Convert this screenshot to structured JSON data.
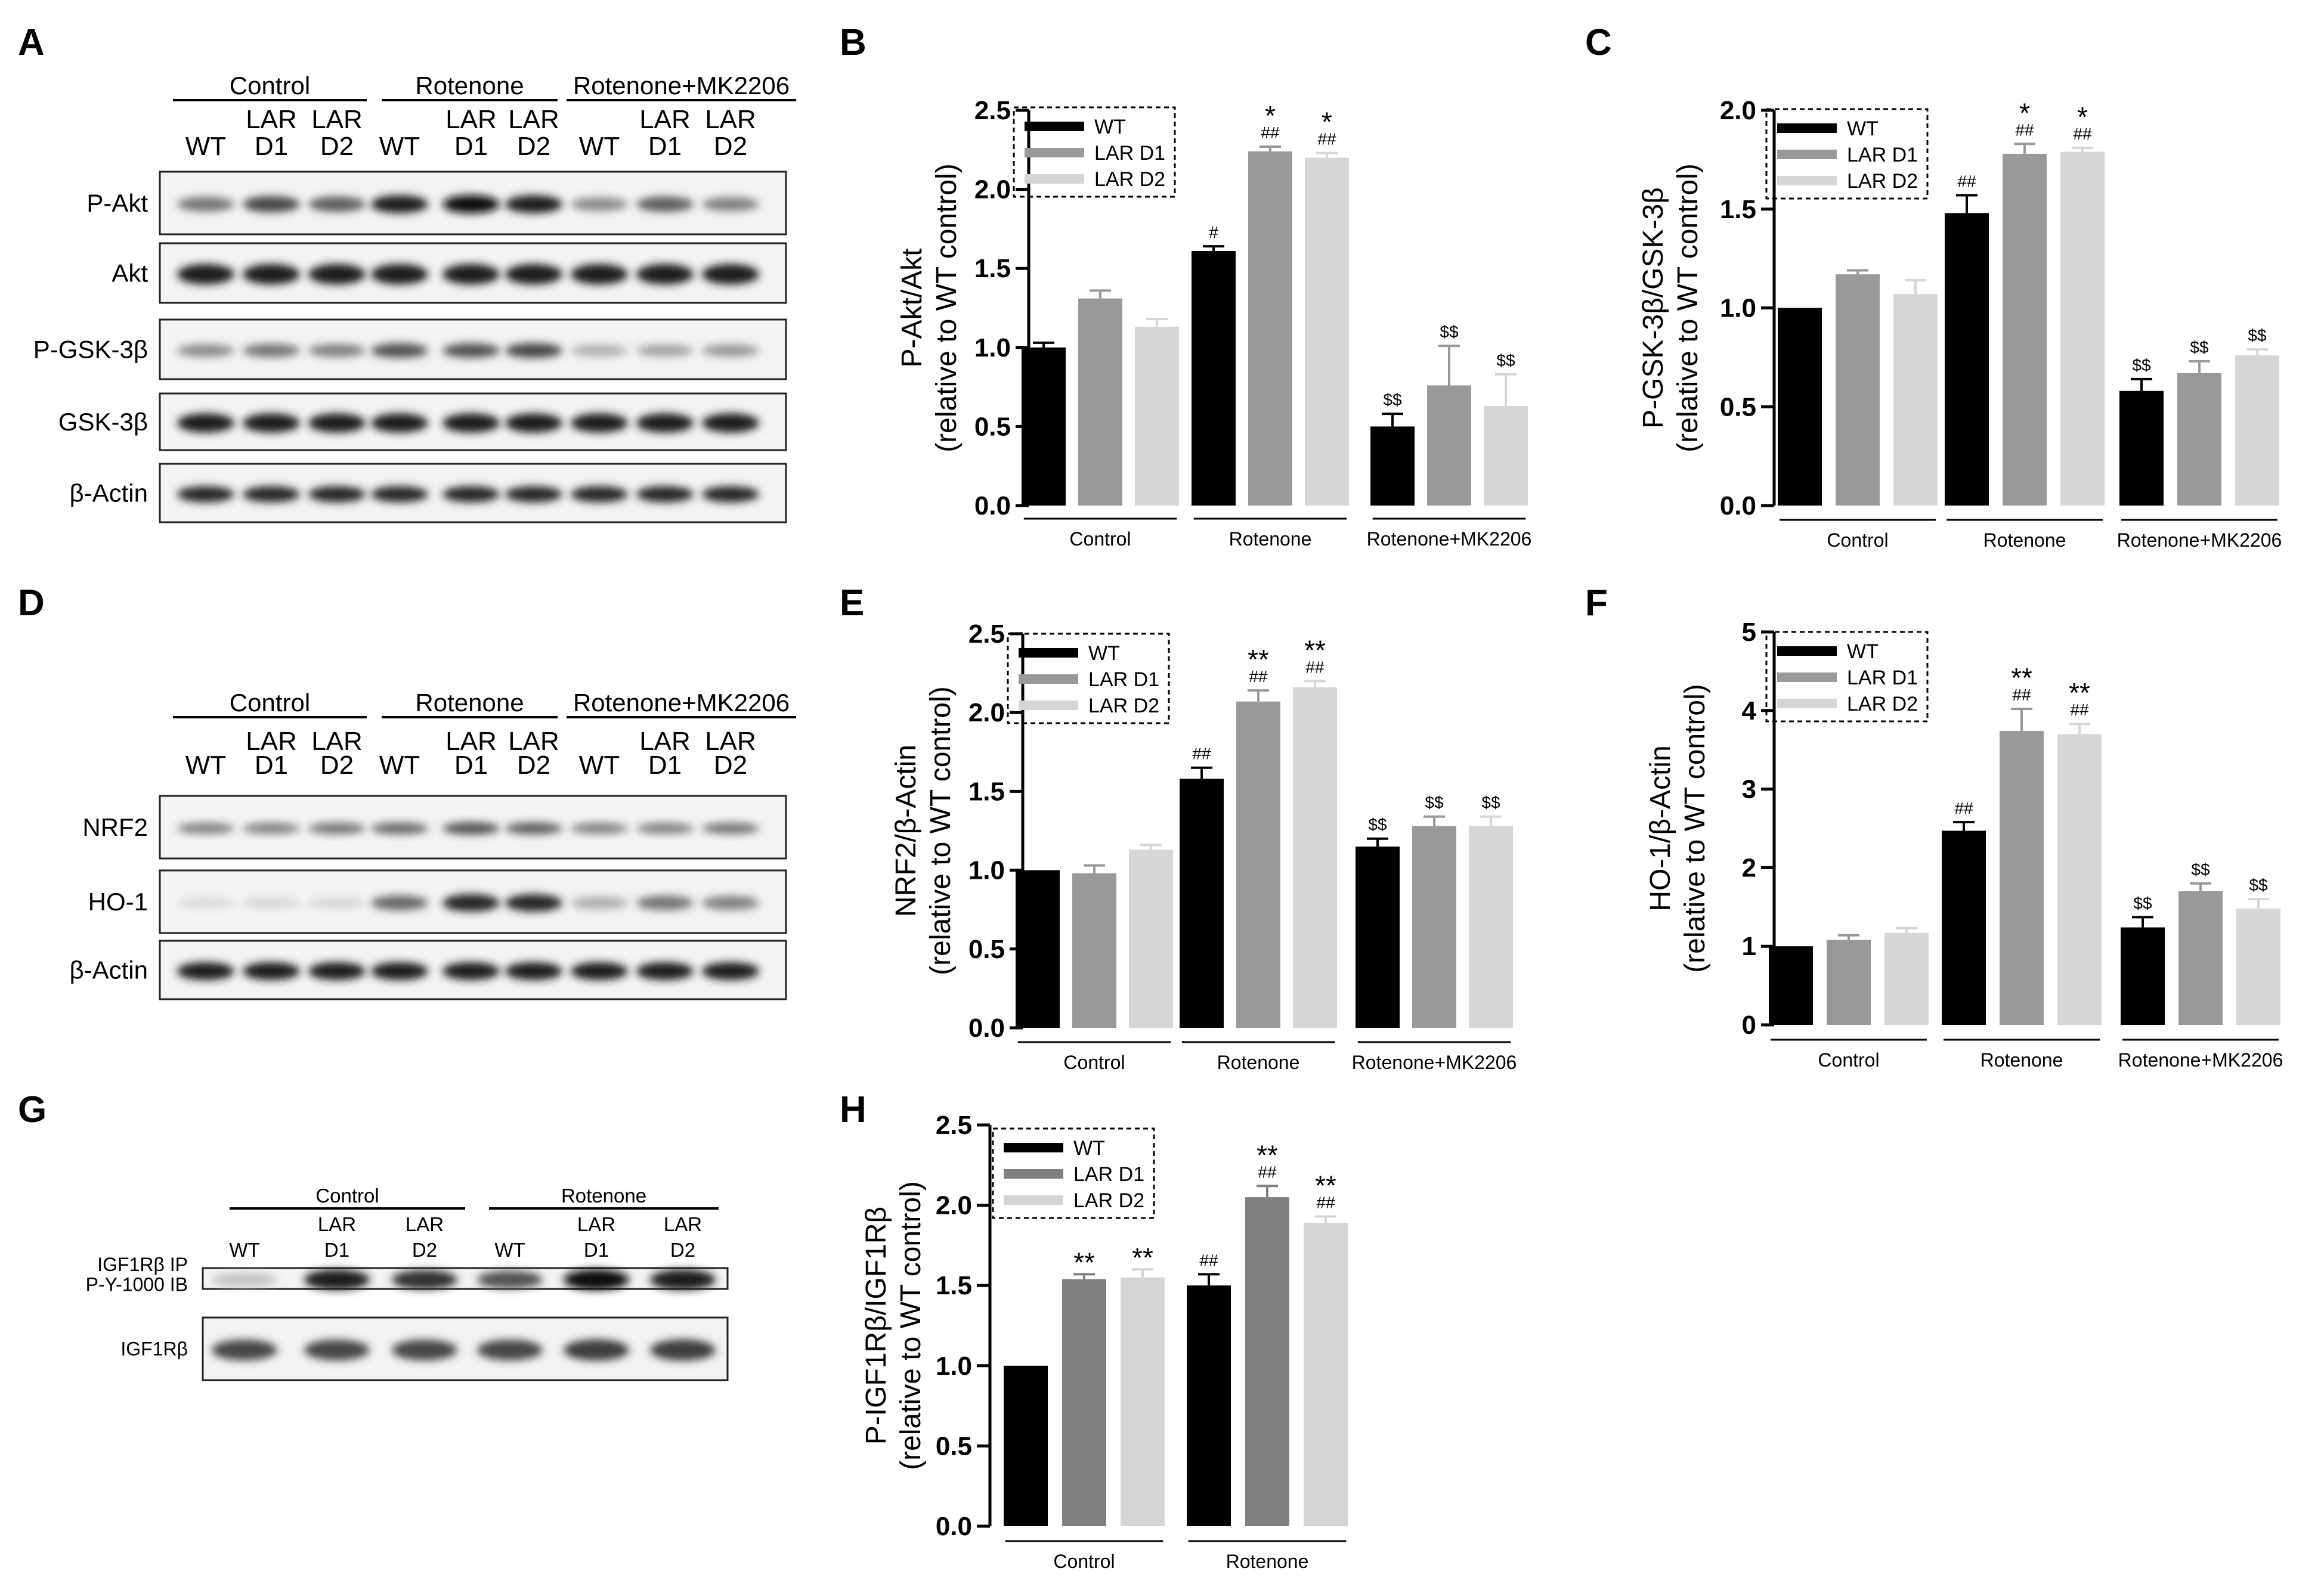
{
  "figure": {
    "panel_letters": [
      "A",
      "B",
      "C",
      "D",
      "E",
      "F",
      "G",
      "H"
    ]
  },
  "blots": {
    "A": {
      "groups": [
        "Control",
        "Rotenone",
        "Rotenone+MK2206"
      ],
      "lanes": [
        [
          "WT"
        ],
        [
          "LAR",
          "D1"
        ],
        [
          "LAR",
          "D2"
        ],
        [
          "WT"
        ],
        [
          "LAR",
          "D1"
        ],
        [
          "LAR",
          "D2"
        ],
        [
          "WT"
        ],
        [
          "LAR",
          "D1"
        ],
        [
          "LAR",
          "D2"
        ]
      ],
      "rows": [
        "P-Akt",
        "Akt",
        "P-GSK-3β",
        "GSK-3β",
        "β-Actin"
      ]
    },
    "D": {
      "groups": [
        "Control",
        "Rotenone",
        "Rotenone+MK2206"
      ],
      "lanes": [
        [
          "WT"
        ],
        [
          "LAR",
          "D1"
        ],
        [
          "LAR",
          "D2"
        ],
        [
          "WT"
        ],
        [
          "LAR",
          "D1"
        ],
        [
          "LAR",
          "D2"
        ],
        [
          "WT"
        ],
        [
          "LAR",
          "D1"
        ],
        [
          "LAR",
          "D2"
        ]
      ],
      "rows": [
        "NRF2",
        "HO-1",
        "β-Actin"
      ]
    },
    "G": {
      "groups": [
        "Control",
        "Rotenone"
      ],
      "lanes": [
        [
          "WT"
        ],
        [
          "LAR",
          "D1"
        ],
        [
          "LAR",
          "D2"
        ],
        [
          "WT"
        ],
        [
          "LAR",
          "D1"
        ],
        [
          "LAR",
          "D2"
        ]
      ],
      "rows": [
        [
          "IGF1Rβ IP",
          "P-Y-1000 IB"
        ],
        [
          "IGF1Rβ"
        ]
      ]
    }
  },
  "colors": {
    "WT": "#000000",
    "LAR D1": "#999999",
    "LAR D2": "#d6d6d6",
    "LAR D1 (H)": "#808080",
    "LAR D2 (H)": "#d4d4d4"
  },
  "chart_data": [
    {
      "panel": "B",
      "type": "bar",
      "ylabel": [
        "P-Akt/Akt",
        "(relative to WT control)"
      ],
      "ylim": [
        0,
        2.5
      ],
      "yticks": [
        "0.0",
        "0.5",
        "1.0",
        "1.5",
        "2.0",
        "2.5"
      ],
      "groups": [
        "Control",
        "Rotenone",
        "Rotenone+MK2206"
      ],
      "legend": [
        "WT",
        "LAR D1",
        "LAR D2"
      ],
      "series": [
        {
          "name": "WT",
          "values": [
            1.0,
            1.61,
            0.5
          ],
          "err": [
            0.03,
            0.03,
            0.08
          ],
          "marks": [
            [],
            [
              "#"
            ],
            [
              "$$"
            ]
          ]
        },
        {
          "name": "LAR D1",
          "values": [
            1.31,
            2.24,
            0.76
          ],
          "err": [
            0.05,
            0.03,
            0.25
          ],
          "marks": [
            [],
            [
              "##",
              "*"
            ],
            [
              "$$"
            ]
          ]
        },
        {
          "name": "LAR D2",
          "values": [
            1.13,
            2.2,
            0.63
          ],
          "err": [
            0.05,
            0.03,
            0.2
          ],
          "marks": [
            [],
            [
              "##",
              "*"
            ],
            [
              "$$"
            ]
          ]
        }
      ]
    },
    {
      "panel": "C",
      "type": "bar",
      "ylabel": [
        "P-GSK-3β/GSK-3β",
        "(relative to WT control)"
      ],
      "ylim": [
        0,
        2.0
      ],
      "yticks": [
        "0.0",
        "0.5",
        "1.0",
        "1.5",
        "2.0"
      ],
      "groups": [
        "Control",
        "Rotenone",
        "Rotenone+MK2206"
      ],
      "legend": [
        "WT",
        "LAR D1",
        "LAR D2"
      ],
      "series": [
        {
          "name": "WT",
          "values": [
            1.0,
            1.48,
            0.58
          ],
          "err": [
            0,
            0.09,
            0.06
          ],
          "marks": [
            [],
            [
              "##"
            ],
            [
              "$$"
            ]
          ]
        },
        {
          "name": "LAR D1",
          "values": [
            1.17,
            1.78,
            0.67
          ],
          "err": [
            0.02,
            0.05,
            0.06
          ],
          "marks": [
            [],
            [
              "##",
              "*"
            ],
            [
              "$$"
            ]
          ]
        },
        {
          "name": "LAR D2",
          "values": [
            1.07,
            1.79,
            0.76
          ],
          "err": [
            0.07,
            0.02,
            0.03
          ],
          "marks": [
            [],
            [
              "##",
              "*"
            ],
            [
              "$$"
            ]
          ]
        }
      ]
    },
    {
      "panel": "E",
      "type": "bar",
      "ylabel": [
        "NRF2/β-Actin",
        "(relative to WT control)"
      ],
      "ylim": [
        0,
        2.5
      ],
      "yticks": [
        "0.0",
        "0.5",
        "1.0",
        "1.5",
        "2.0",
        "2.5"
      ],
      "groups": [
        "Control",
        "Rotenone",
        "Rotenone+MK2206"
      ],
      "legend": [
        "WT",
        "LAR D1",
        "LAR D2"
      ],
      "series": [
        {
          "name": "WT",
          "values": [
            1.0,
            1.58,
            1.15
          ],
          "err": [
            0,
            0.07,
            0.05
          ],
          "marks": [
            [],
            [
              "##"
            ],
            [
              "$$"
            ]
          ]
        },
        {
          "name": "LAR D1",
          "values": [
            0.98,
            2.07,
            1.28
          ],
          "err": [
            0.05,
            0.07,
            0.06
          ],
          "marks": [
            [],
            [
              "##",
              "**"
            ],
            [
              "$$"
            ]
          ]
        },
        {
          "name": "LAR D2",
          "values": [
            1.13,
            2.16,
            1.28
          ],
          "err": [
            0.03,
            0.04,
            0.06
          ],
          "marks": [
            [],
            [
              "##",
              "**"
            ],
            [
              "$$"
            ]
          ]
        }
      ]
    },
    {
      "panel": "F",
      "type": "bar",
      "ylabel": [
        "HO-1/β-Actin",
        "(relative to WT control)"
      ],
      "ylim": [
        0,
        5
      ],
      "yticks": [
        "0",
        "1",
        "2",
        "3",
        "4",
        "5"
      ],
      "groups": [
        "Control",
        "Rotenone",
        "Rotenone+MK2206"
      ],
      "legend": [
        "WT",
        "LAR D1",
        "LAR D2"
      ],
      "series": [
        {
          "name": "WT",
          "values": [
            1.0,
            2.47,
            1.24
          ],
          "err": [
            0,
            0.11,
            0.13
          ],
          "marks": [
            [],
            [
              "##"
            ],
            [
              "$$"
            ]
          ]
        },
        {
          "name": "LAR D1",
          "values": [
            1.08,
            3.74,
            1.7
          ],
          "err": [
            0.06,
            0.28,
            0.1
          ],
          "marks": [
            [],
            [
              "##",
              "**"
            ],
            [
              "$$"
            ]
          ]
        },
        {
          "name": "LAR D2",
          "values": [
            1.17,
            3.7,
            1.48
          ],
          "err": [
            0.06,
            0.13,
            0.12
          ],
          "marks": [
            [],
            [
              "##",
              "**"
            ],
            [
              "$$"
            ]
          ]
        }
      ]
    },
    {
      "panel": "H",
      "type": "bar",
      "ylabel": [
        "P-IGF1Rβ/IGF1Rβ",
        "(relative to WT control)"
      ],
      "ylim": [
        0,
        2.5
      ],
      "yticks": [
        "0.0",
        "0.5",
        "1.0",
        "1.5",
        "2.0",
        "2.5"
      ],
      "groups": [
        "Control",
        "Rotenone"
      ],
      "legend": [
        "WT",
        "LAR D1",
        "LAR D2"
      ],
      "series": [
        {
          "name": "WT",
          "values": [
            1.0,
            1.5
          ],
          "err": [
            0,
            0.07
          ],
          "marks": [
            [],
            [
              "##"
            ]
          ]
        },
        {
          "name": "LAR D1",
          "values": [
            1.54,
            2.05
          ],
          "err": [
            0.03,
            0.07
          ],
          "marks": [
            [
              "**"
            ],
            [
              "##",
              "**"
            ]
          ]
        },
        {
          "name": "LAR D2",
          "values": [
            1.55,
            1.89
          ],
          "err": [
            0.05,
            0.04
          ],
          "marks": [
            [
              "**"
            ],
            [
              "##",
              "**"
            ]
          ]
        }
      ]
    }
  ]
}
